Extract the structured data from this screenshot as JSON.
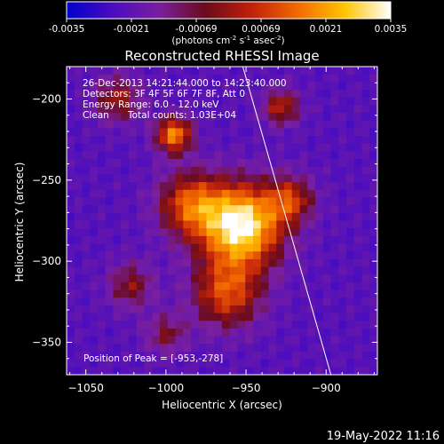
{
  "chart_data": {
    "type": "heatmap",
    "title": "Reconstructed RHESSI Image",
    "xlabel": "Heliocentric X (arcsec)",
    "ylabel": "Heliocentric Y (arcsec)",
    "xlim": [
      -1062,
      -868
    ],
    "ylim": [
      -370,
      -180
    ],
    "x_ticks": [
      -1050,
      -1000,
      -950,
      -900
    ],
    "y_ticks": [
      -200,
      -250,
      -300,
      -350
    ],
    "colorbar": {
      "min": -0.0035,
      "max": 0.0035,
      "ticks": [
        "-0.0035",
        "-0.0021",
        "-0.00069",
        "0.00069",
        "0.0021",
        "0.0035"
      ],
      "label_prefix": "(photons cm",
      "label_units": [
        "-2",
        " s",
        "-1",
        " asec",
        "-2",
        ")"
      ],
      "colors": [
        "#0000cc",
        "#4b0cc0",
        "#7a1f9e",
        "#6b0b1c",
        "#c1200a",
        "#f36a00",
        "#ffc400",
        "#ffffff"
      ]
    },
    "annotations": {
      "time_range": "26-Dec-2013 14:21:44.000 to 14:23:40.000",
      "detectors": "Detectors: 3F 4F 5F 6F 7F 8F, Att 0",
      "energy": "Energy Range: 6.0 - 12.0 keV",
      "algorithm": "Clean",
      "counts": "Total counts: 1.03E+04",
      "peak": "Position of Peak = [-953,-278]"
    },
    "peak": {
      "x": -953,
      "y": -278
    },
    "sources": [
      {
        "x": -953,
        "y": -278,
        "sigma": 18,
        "amp": 1.0
      },
      {
        "x": -985,
        "y": -265,
        "sigma": 14,
        "amp": 0.55
      },
      {
        "x": -995,
        "y": -222,
        "sigma": 8,
        "amp": 0.7
      },
      {
        "x": -1030,
        "y": -200,
        "sigma": 10,
        "amp": 0.4
      },
      {
        "x": -962,
        "y": -320,
        "sigma": 15,
        "amp": 0.55
      },
      {
        "x": -922,
        "y": -262,
        "sigma": 10,
        "amp": 0.45
      },
      {
        "x": -1022,
        "y": -315,
        "sigma": 10,
        "amp": 0.35
      },
      {
        "x": -928,
        "y": -205,
        "sigma": 8,
        "amp": 0.45
      },
      {
        "x": -1000,
        "y": -345,
        "sigma": 9,
        "amp": 0.3
      }
    ],
    "limb_line": [
      [
        -952,
        -180
      ],
      [
        -897,
        -370
      ]
    ]
  },
  "footer": {
    "date": "19-May-2022 11:16"
  }
}
